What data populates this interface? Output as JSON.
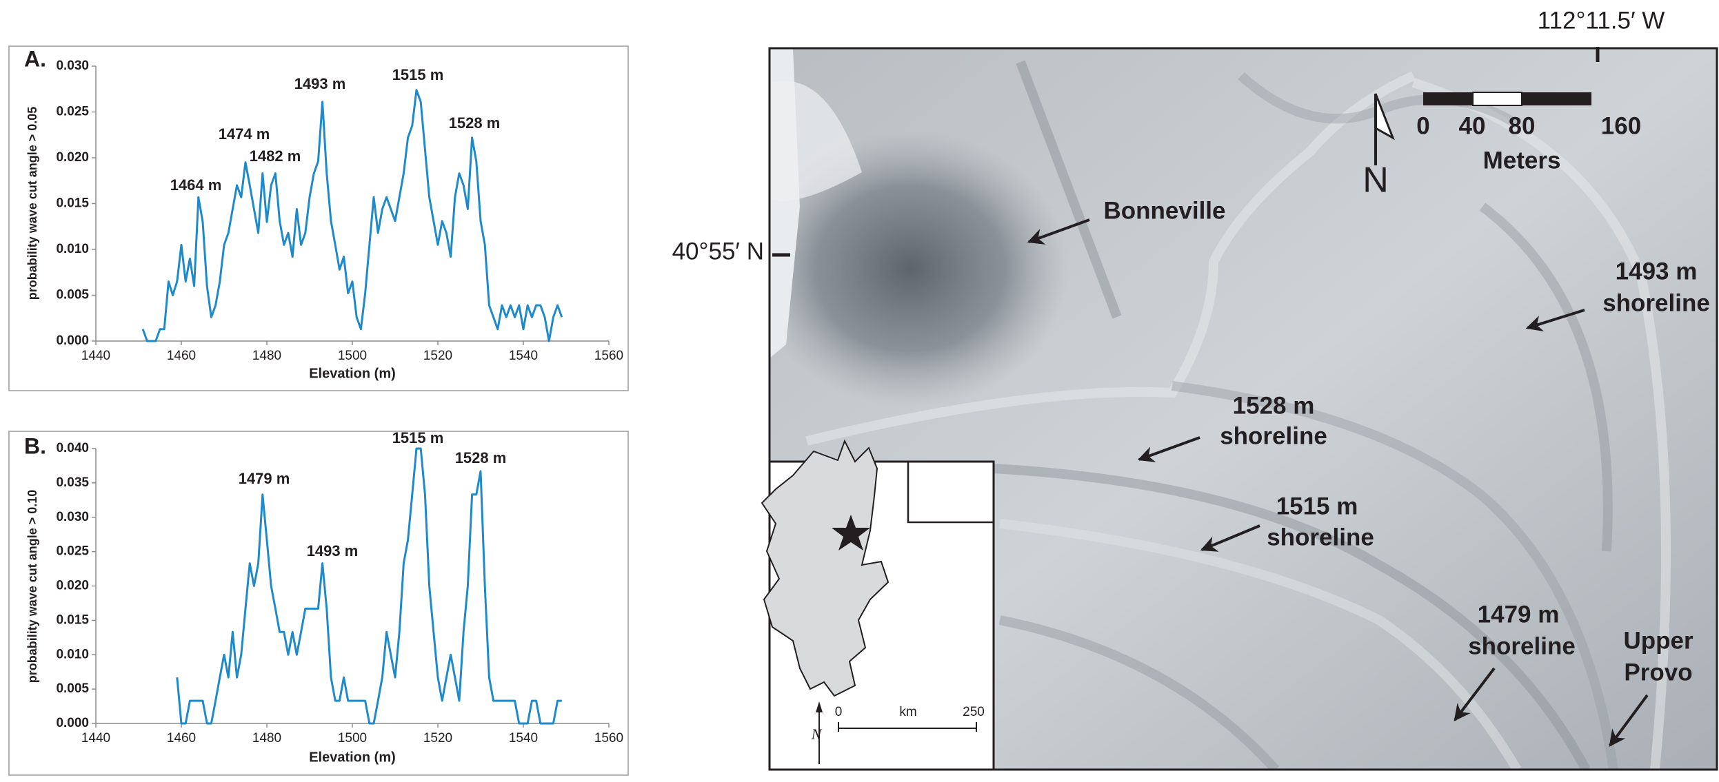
{
  "chart_data": [
    {
      "type": "line",
      "label": "A.",
      "ylabel": "probability wave cut angle > 0.05",
      "xlabel": "Elevation (m)",
      "xlim": [
        1440,
        1560
      ],
      "xticks": [
        1440,
        1460,
        1480,
        1500,
        1520,
        1540,
        1560
      ],
      "ylim": [
        0,
        0.03
      ],
      "yticks": [
        {
          "value": 0,
          "label": "0.000"
        },
        {
          "value": 0.005,
          "label": "0.005"
        },
        {
          "value": 0.01,
          "label": "0.010"
        },
        {
          "value": 0.015,
          "label": "0.015"
        },
        {
          "value": 0.02,
          "label": "0.020"
        },
        {
          "value": 0.025,
          "label": "0.025"
        },
        {
          "value": 0.03,
          "label": "0.030"
        }
      ],
      "annotations": [
        "1464 m",
        "1474 m",
        "1482 m",
        "1493 m",
        "1515 m",
        "1528 m"
      ],
      "color": "#1f8ac9",
      "x": [
        1451,
        1452,
        1453,
        1454,
        1455,
        1456,
        1457,
        1458,
        1459,
        1460,
        1461,
        1462,
        1463,
        1464,
        1465,
        1466,
        1467,
        1468,
        1469,
        1470,
        1471,
        1472,
        1473,
        1474,
        1475,
        1476,
        1477,
        1478,
        1479,
        1480,
        1481,
        1482,
        1483,
        1484,
        1485,
        1486,
        1487,
        1488,
        1489,
        1490,
        1491,
        1492,
        1493,
        1494,
        1495,
        1496,
        1497,
        1498,
        1499,
        1500,
        1501,
        1502,
        1503,
        1504,
        1505,
        1506,
        1507,
        1508,
        1509,
        1510,
        1511,
        1512,
        1513,
        1514,
        1515,
        1516,
        1517,
        1518,
        1519,
        1520,
        1521,
        1522,
        1523,
        1524,
        1525,
        1526,
        1527,
        1528,
        1529,
        1530,
        1531,
        1532,
        1533,
        1534,
        1535,
        1536,
        1537,
        1538,
        1539,
        1540,
        1541,
        1542,
        1543,
        1544,
        1545,
        1546,
        1547,
        1548,
        1549
      ],
      "values": [
        0.0013,
        0,
        0,
        0,
        0.0013,
        0.0013,
        0.0065,
        0.005,
        0.0065,
        0.0105,
        0.0065,
        0.009,
        0.006,
        0.0157,
        0.013,
        0.006,
        0.0026,
        0.0039,
        0.0065,
        0.0105,
        0.0118,
        0.0144,
        0.017,
        0.0157,
        0.0195,
        0.017,
        0.0144,
        0.0118,
        0.0183,
        0.013,
        0.017,
        0.0183,
        0.0131,
        0.0105,
        0.0118,
        0.0092,
        0.0144,
        0.0105,
        0.0118,
        0.0157,
        0.0183,
        0.0196,
        0.0261,
        0.0183,
        0.0131,
        0.0105,
        0.0078,
        0.0092,
        0.0052,
        0.0065,
        0.0026,
        0.0013,
        0.0052,
        0.0105,
        0.0157,
        0.0118,
        0.0144,
        0.0157,
        0.0144,
        0.0131,
        0.0157,
        0.0183,
        0.0222,
        0.0235,
        0.0274,
        0.0261,
        0.0209,
        0.0157,
        0.0131,
        0.0105,
        0.0131,
        0.0118,
        0.0092,
        0.0157,
        0.0183,
        0.017,
        0.0144,
        0.0222,
        0.0196,
        0.0131,
        0.0105,
        0.0039,
        0.0026,
        0.0013,
        0.0039,
        0.0026,
        0.0039,
        0.0026,
        0.0039,
        0.0013,
        0.0039,
        0.0026,
        0.0039,
        0.0039,
        0.0026,
        0,
        0.0026,
        0.0039,
        0.0026
      ]
    },
    {
      "type": "line",
      "label": "B.",
      "ylabel": "probability wave cut angle > 0.10",
      "xlabel": "Elevation (m)",
      "xlim": [
        1440,
        1560
      ],
      "xticks": [
        1440,
        1460,
        1480,
        1500,
        1520,
        1540,
        1560
      ],
      "ylim": [
        0,
        0.04
      ],
      "yticks": [
        {
          "value": 0,
          "label": "0.000"
        },
        {
          "value": 0.005,
          "label": "0.005"
        },
        {
          "value": 0.01,
          "label": "0.010"
        },
        {
          "value": 0.015,
          "label": "0.015"
        },
        {
          "value": 0.02,
          "label": "0.020"
        },
        {
          "value": 0.025,
          "label": "0.025"
        },
        {
          "value": 0.03,
          "label": "0.030"
        },
        {
          "value": 0.035,
          "label": "0.035"
        },
        {
          "value": 0.04,
          "label": "0.040"
        }
      ],
      "annotations": [
        "1479 m",
        "1493 m",
        "1515 m",
        "1528 m"
      ],
      "color": "#1f8ac9",
      "x": [
        1459,
        1460,
        1461,
        1462,
        1463,
        1464,
        1465,
        1466,
        1467,
        1468,
        1469,
        1470,
        1471,
        1472,
        1473,
        1474,
        1475,
        1476,
        1477,
        1478,
        1479,
        1480,
        1481,
        1482,
        1483,
        1484,
        1485,
        1486,
        1487,
        1488,
        1489,
        1490,
        1491,
        1492,
        1493,
        1494,
        1495,
        1496,
        1497,
        1498,
        1499,
        1500,
        1501,
        1502,
        1503,
        1504,
        1505,
        1506,
        1507,
        1508,
        1509,
        1510,
        1511,
        1512,
        1513,
        1514,
        1515,
        1516,
        1517,
        1518,
        1519,
        1520,
        1521,
        1522,
        1523,
        1524,
        1525,
        1526,
        1527,
        1528,
        1529,
        1530,
        1531,
        1532,
        1533,
        1534,
        1535,
        1536,
        1537,
        1538,
        1539,
        1540,
        1541,
        1542,
        1543,
        1544,
        1545,
        1546,
        1547,
        1548,
        1549
      ],
      "values": [
        0.0067,
        0,
        0,
        0.0033,
        0.0033,
        0.0033,
        0.0033,
        0,
        0,
        0.0033,
        0.0067,
        0.01,
        0.0067,
        0.0133,
        0.0067,
        0.01,
        0.0167,
        0.0233,
        0.02,
        0.0233,
        0.0333,
        0.0267,
        0.02,
        0.0167,
        0.0133,
        0.0133,
        0.01,
        0.0133,
        0.01,
        0.0133,
        0.0167,
        0.0167,
        0.0167,
        0.0167,
        0.0233,
        0.0167,
        0.0067,
        0.0033,
        0.0033,
        0.0067,
        0.0033,
        0.0033,
        0.0033,
        0.0033,
        0.0033,
        0,
        0,
        0.0033,
        0.0067,
        0.0133,
        0.01,
        0.0067,
        0.0133,
        0.0233,
        0.0267,
        0.0333,
        0.04,
        0.04,
        0.0333,
        0.02,
        0.0133,
        0.0067,
        0.0033,
        0.0067,
        0.01,
        0.0067,
        0.0033,
        0.0133,
        0.02,
        0.0333,
        0.0333,
        0.0367,
        0.02,
        0.0067,
        0.0033,
        0.0033,
        0.0033,
        0.0033,
        0.0033,
        0.0033,
        0,
        0,
        0,
        0.0033,
        0.0033,
        0,
        0,
        0,
        0,
        0.0033,
        0.0033
      ]
    }
  ],
  "map": {
    "lon_label": "112°11.5′ W",
    "lat_label": "40°55′ N",
    "scale": {
      "ticks": [
        0,
        40,
        80,
        160
      ],
      "unit": "Meters"
    },
    "north": "N",
    "labels": [
      [
        "Bonneville"
      ],
      [
        "1493 m",
        "shoreline"
      ],
      [
        "1528 m",
        "shoreline"
      ],
      [
        "1515 m",
        "shoreline"
      ],
      [
        "1479 m",
        "shoreline"
      ],
      [
        "Upper",
        "Provo"
      ]
    ],
    "inset": {
      "scale": [
        0,
        250
      ],
      "unit": "km",
      "north": "N"
    }
  }
}
